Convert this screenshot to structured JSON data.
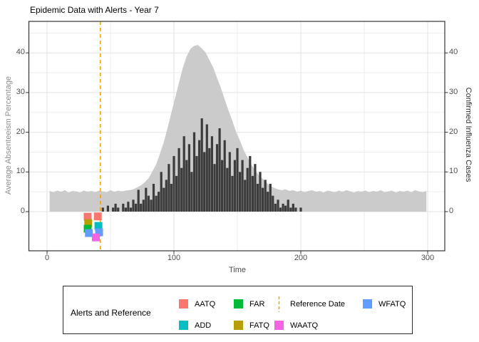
{
  "title": "Epidemic Data with Alerts - Year 7",
  "axes": {
    "x": {
      "label": "Time",
      "ticks": [
        0,
        100,
        200,
        300
      ],
      "minor_ticks": [
        50,
        150,
        250
      ],
      "range": [
        -14,
        314
      ]
    },
    "y_left": {
      "label": "Average Absenteeism Percentage",
      "ticks": [
        0,
        10,
        20,
        30,
        40
      ],
      "minor_ticks": [
        5,
        15,
        25,
        35,
        45
      ],
      "range": [
        -10,
        48
      ]
    },
    "y_right": {
      "label": "Confirmed Influenza Cases",
      "ticks": [
        0,
        10,
        20,
        30,
        40
      ]
    }
  },
  "colors": {
    "absenteeism_fill": "#CBCBCB",
    "flu_fill": "#3C3C3C",
    "reference": "#F2A109",
    "AATQ": "#F8766D",
    "ADD": "#00BFC4",
    "FAR": "#00BA38",
    "FATQ": "#B79F00",
    "WAATQ": "#F564E3",
    "WFATQ": "#619CFF",
    "grid_major": "#E2E2E2",
    "grid_minor": "#EDEDED",
    "panel_border": "#333333",
    "tick_mark": "#333333"
  },
  "legend": {
    "title": "Alerts and Reference",
    "items": [
      {
        "label": "AATQ",
        "key": "AATQ"
      },
      {
        "label": "ADD",
        "key": "ADD"
      },
      {
        "label": "FAR",
        "key": "FAR"
      },
      {
        "label": "FATQ",
        "key": "FATQ"
      },
      {
        "label": "Reference Date",
        "key": "reference"
      },
      {
        "label": "WAATQ",
        "key": "WAATQ"
      },
      {
        "label": "WFATQ",
        "key": "WFATQ"
      }
    ]
  },
  "chart_data": {
    "type": "combo",
    "title": "Epidemic Data with Alerts - Year 7",
    "xlabel": "Time",
    "ylabel_left": "Average Absenteeism Percentage",
    "ylabel_right": "Confirmed Influenza Cases",
    "xlim": [
      -14,
      314
    ],
    "ylim": [
      -10,
      48
    ],
    "grid": true,
    "legend_position": "bottom",
    "reference_date": 42,
    "series": [
      {
        "name": "Average Absenteeism Percentage",
        "type": "area",
        "axis": "left",
        "x_start": 2,
        "x_step": 3,
        "values": [
          5.2,
          4.9,
          5.3,
          5.0,
          5.4,
          4.8,
          5.2,
          5.1,
          4.8,
          5.3,
          5.0,
          5.2,
          4.9,
          5.3,
          5.1,
          4.9,
          5.4,
          5.0,
          5.3,
          5.1,
          5.3,
          5.4,
          5.6,
          6.1,
          6.6,
          7.4,
          8.4,
          10.1,
          11.9,
          14.6,
          17.5,
          21.1,
          24.9,
          28.7,
          32.5,
          36.2,
          39.1,
          41.0,
          41.8,
          42.0,
          41.1,
          40.1,
          38.2,
          36.3,
          33.7,
          31.2,
          28.3,
          25.5,
          22.9,
          20.1,
          17.9,
          15.5,
          13.7,
          11.8,
          10.5,
          9.1,
          8.3,
          7.3,
          6.4,
          6.0,
          5.6,
          5.4,
          5.6,
          5.2,
          5.4,
          5.0,
          5.3,
          4.9,
          5.2,
          5.4,
          5.0,
          5.2,
          4.8,
          5.3,
          5.1,
          4.9,
          5.3,
          5.0,
          5.4,
          5.1,
          4.8,
          5.2,
          5.0,
          5.3,
          4.9,
          5.2,
          5.0,
          5.4,
          4.9,
          5.1,
          5.3,
          4.8,
          5.2,
          5.0,
          5.3,
          4.9,
          5.4,
          5.1,
          4.9,
          5.2
        ]
      },
      {
        "name": "Confirmed Influenza Cases",
        "type": "bar",
        "axis": "right",
        "x_start": 44,
        "x_step": 2,
        "values": [
          1,
          0,
          1.5,
          0,
          1,
          2,
          1,
          0,
          2,
          1,
          2.5,
          1,
          3,
          2,
          5.5,
          2,
          3,
          6,
          4,
          3,
          7,
          4,
          5,
          10,
          6,
          8,
          12,
          7,
          14,
          9,
          16,
          11,
          19,
          13,
          17,
          10,
          20,
          14,
          18,
          23.5,
          15,
          22,
          16,
          19,
          12,
          17,
          21,
          13,
          18,
          11,
          15,
          9,
          13,
          16,
          10,
          13,
          8,
          11,
          14,
          9,
          12,
          7,
          10,
          6,
          8,
          5,
          7,
          4,
          2,
          3,
          1,
          2,
          1.5,
          3,
          1,
          2,
          1,
          0,
          1
        ]
      }
    ],
    "alerts": [
      {
        "label": "AATQ",
        "key": "AATQ",
        "t": 32,
        "value": -1.3
      },
      {
        "label": "AATQ",
        "key": "AATQ",
        "t": 40,
        "value": -1.2
      },
      {
        "label": "FATQ",
        "key": "FATQ",
        "t": 32.5,
        "value": -2.9
      },
      {
        "label": "ADD",
        "key": "ADD",
        "t": 40.5,
        "value": -3.6
      },
      {
        "label": "FAR",
        "key": "FAR",
        "t": 32,
        "value": -4.3
      },
      {
        "label": "WFATQ",
        "key": "WFATQ",
        "t": 33,
        "value": -5.4
      },
      {
        "label": "WFATQ",
        "key": "WFATQ",
        "t": 41,
        "value": -5.2
      },
      {
        "label": "WAATQ",
        "key": "WAATQ",
        "t": 38.5,
        "value": -6.5
      }
    ]
  }
}
